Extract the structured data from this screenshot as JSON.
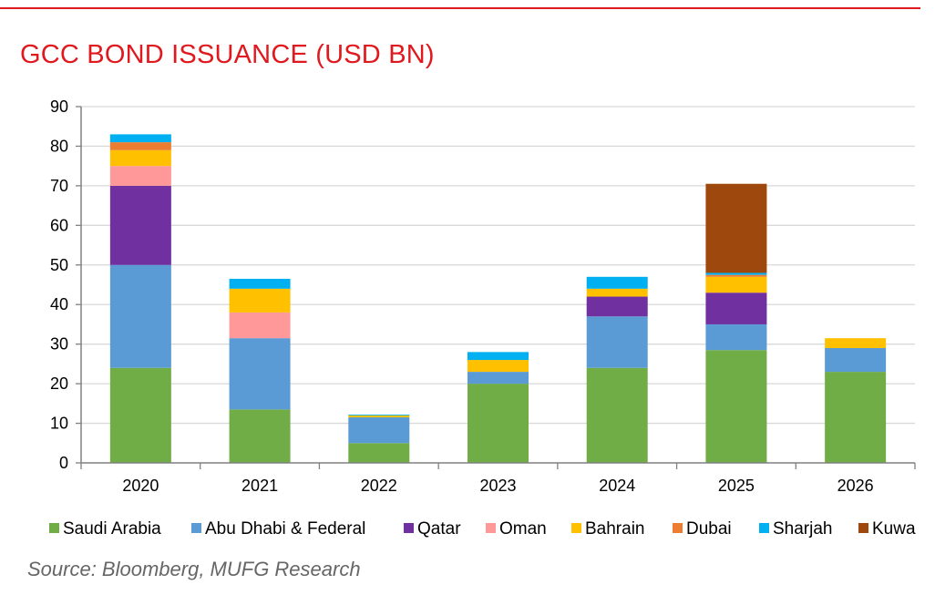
{
  "header": {
    "title": "GCC BOND ISSUANCE (USD BN)"
  },
  "footer": {
    "source": "Source: Bloomberg, MUFG Research"
  },
  "chart_data": {
    "type": "bar",
    "stacked": true,
    "title": "GCC BOND ISSUANCE (USD BN)",
    "xlabel": "",
    "ylabel": "",
    "ylim": [
      0,
      90
    ],
    "yticks": [
      0,
      10,
      20,
      30,
      40,
      50,
      60,
      70,
      80,
      90
    ],
    "grid": true,
    "legend_position": "bottom",
    "categories": [
      "2020",
      "2021",
      "2022",
      "2023",
      "2024",
      "2025",
      "2026"
    ],
    "series": [
      {
        "name": "Saudi Arabia",
        "color": "#70ad47",
        "values": [
          24,
          13.5,
          5,
          20,
          24,
          28.5,
          23
        ]
      },
      {
        "name": "Abu Dhabi & Federal",
        "color": "#5b9bd5",
        "values": [
          26,
          18,
          6.5,
          3,
          13,
          6.5,
          6
        ]
      },
      {
        "name": "Qatar",
        "color": "#7030a0",
        "values": [
          20,
          0,
          0,
          0,
          5,
          8,
          0
        ]
      },
      {
        "name": "Oman",
        "color": "#ff9999",
        "values": [
          5,
          6.5,
          0,
          0,
          0,
          0,
          0
        ]
      },
      {
        "name": "Bahrain",
        "color": "#ffc000",
        "values": [
          4,
          6,
          0.5,
          3,
          2,
          4,
          2.5
        ]
      },
      {
        "name": "Dubai",
        "color": "#ed7d31",
        "values": [
          2,
          0,
          0,
          0,
          0,
          0.5,
          0
        ]
      },
      {
        "name": "Sharjah",
        "color": "#00b0f0",
        "values": [
          2,
          2.5,
          0.2,
          2,
          3,
          0.5,
          0
        ]
      },
      {
        "name": "Kuwait",
        "color": "#9e480e",
        "values": [
          0,
          0,
          0,
          0,
          0,
          22.5,
          0
        ]
      }
    ],
    "legend_visible_text": "Kuwa"
  }
}
